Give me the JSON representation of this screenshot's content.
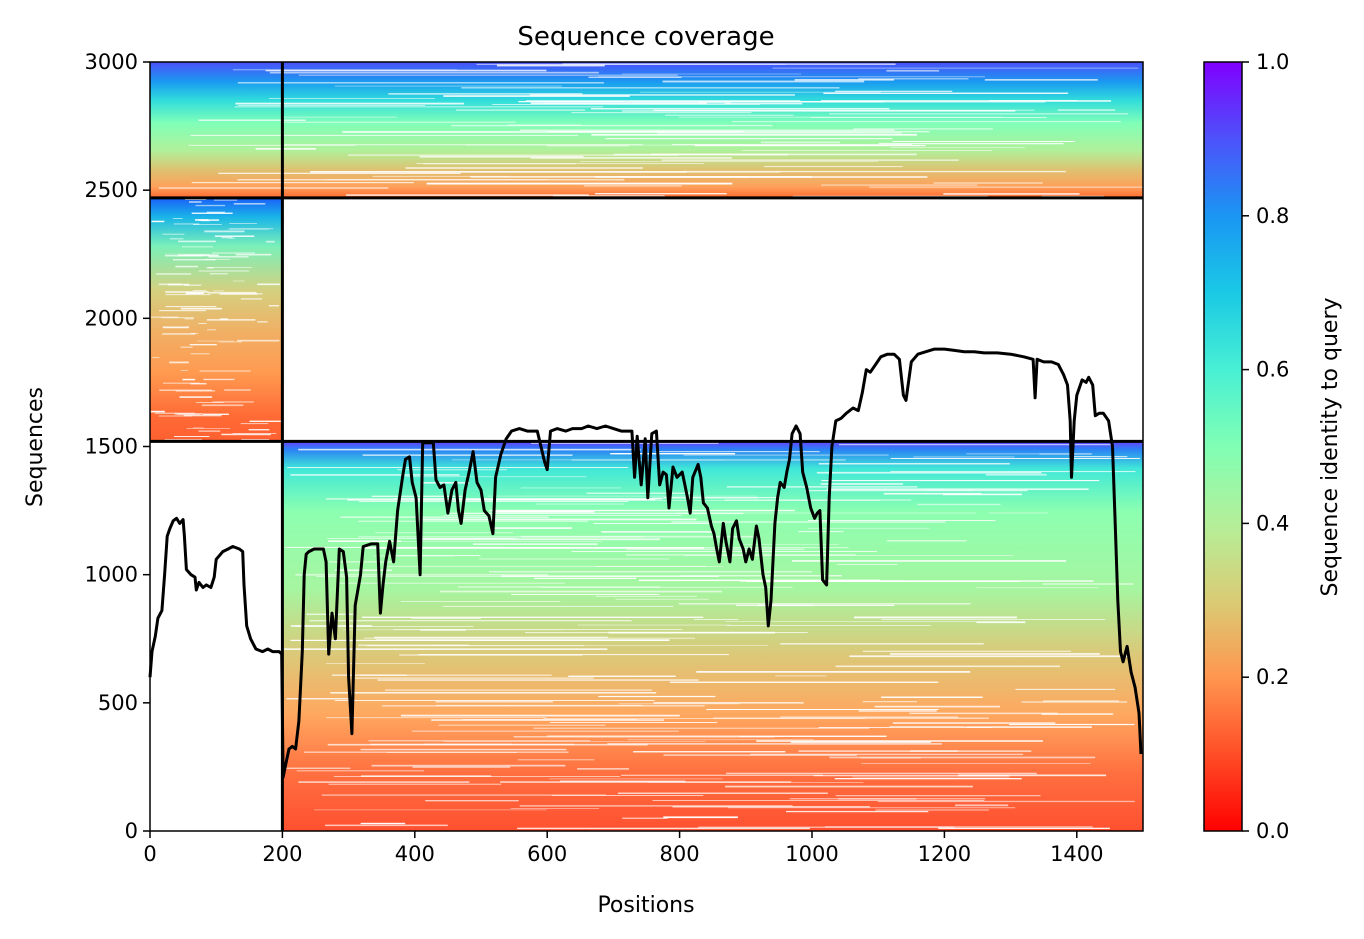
{
  "chart_data": {
    "type": "heatmap",
    "title": "Sequence coverage",
    "xlabel": "Positions",
    "ylabel": "Sequences",
    "xlim": [
      0,
      1500
    ],
    "ylim": [
      0,
      3000
    ],
    "x_ticks": [
      0,
      200,
      400,
      600,
      800,
      1000,
      1200,
      1400
    ],
    "y_ticks": [
      0,
      500,
      1000,
      1500,
      2000,
      2500,
      3000
    ],
    "colorbar": {
      "label": "Sequence identity to query",
      "colormap": "rainbow",
      "range": [
        0.0,
        1.0
      ],
      "ticks": [
        "0.0",
        "0.2",
        "0.4",
        "0.6",
        "0.8",
        "1.0"
      ]
    },
    "block_boundaries": {
      "vertical_x": 200,
      "horizontal_y": [
        1520,
        2470
      ]
    },
    "coverage_blocks": [
      {
        "name": "block-1",
        "x": [
          0,
          200
        ],
        "y": [
          1520,
          2470
        ]
      },
      {
        "name": "block-2",
        "x": [
          200,
          1500
        ],
        "y": [
          0,
          1520
        ]
      },
      {
        "name": "block-3",
        "x": [
          0,
          1500
        ],
        "y": [
          2470,
          3000
        ]
      }
    ],
    "coverage_series": {
      "color": "#000000",
      "points": [
        [
          0,
          600
        ],
        [
          3,
          700
        ],
        [
          8,
          760
        ],
        [
          12,
          830
        ],
        [
          18,
          860
        ],
        [
          22,
          1000
        ],
        [
          26,
          1150
        ],
        [
          30,
          1180
        ],
        [
          35,
          1210
        ],
        [
          40,
          1220
        ],
        [
          45,
          1200
        ],
        [
          50,
          1215
        ],
        [
          52,
          1150
        ],
        [
          55,
          1020
        ],
        [
          62,
          1000
        ],
        [
          68,
          990
        ],
        [
          70,
          940
        ],
        [
          74,
          970
        ],
        [
          80,
          950
        ],
        [
          85,
          960
        ],
        [
          92,
          950
        ],
        [
          97,
          990
        ],
        [
          100,
          1060
        ],
        [
          110,
          1090
        ],
        [
          118,
          1100
        ],
        [
          125,
          1110
        ],
        [
          135,
          1100
        ],
        [
          140,
          1090
        ],
        [
          142,
          960
        ],
        [
          146,
          800
        ],
        [
          152,
          750
        ],
        [
          160,
          710
        ],
        [
          170,
          700
        ],
        [
          178,
          710
        ],
        [
          185,
          700
        ],
        [
          195,
          700
        ],
        [
          199,
          690
        ],
        [
          201,
          210
        ],
        [
          205,
          260
        ],
        [
          210,
          320
        ],
        [
          215,
          330
        ],
        [
          220,
          320
        ],
        [
          225,
          430
        ],
        [
          230,
          700
        ],
        [
          233,
          1000
        ],
        [
          236,
          1080
        ],
        [
          240,
          1090
        ],
        [
          248,
          1100
        ],
        [
          255,
          1100
        ],
        [
          262,
          1100
        ],
        [
          266,
          1050
        ],
        [
          270,
          690
        ],
        [
          275,
          850
        ],
        [
          280,
          750
        ],
        [
          286,
          1100
        ],
        [
          292,
          1090
        ],
        [
          297,
          990
        ],
        [
          300,
          600
        ],
        [
          305,
          380
        ],
        [
          310,
          880
        ],
        [
          318,
          1000
        ],
        [
          322,
          1110
        ],
        [
          334,
          1120
        ],
        [
          344,
          1120
        ],
        [
          348,
          850
        ],
        [
          352,
          960
        ],
        [
          356,
          1050
        ],
        [
          362,
          1130
        ],
        [
          368,
          1050
        ],
        [
          374,
          1250
        ],
        [
          382,
          1390
        ],
        [
          386,
          1450
        ],
        [
          392,
          1460
        ],
        [
          396,
          1360
        ],
        [
          402,
          1300
        ],
        [
          408,
          1000
        ],
        [
          412,
          1515
        ],
        [
          428,
          1515
        ],
        [
          432,
          1370
        ],
        [
          438,
          1340
        ],
        [
          444,
          1350
        ],
        [
          450,
          1240
        ],
        [
          456,
          1330
        ],
        [
          462,
          1360
        ],
        [
          466,
          1250
        ],
        [
          470,
          1200
        ],
        [
          476,
          1330
        ],
        [
          482,
          1400
        ],
        [
          488,
          1480
        ],
        [
          494,
          1360
        ],
        [
          500,
          1330
        ],
        [
          505,
          1250
        ],
        [
          512,
          1230
        ],
        [
          518,
          1160
        ],
        [
          522,
          1380
        ],
        [
          530,
          1470
        ],
        [
          538,
          1530
        ],
        [
          546,
          1560
        ],
        [
          558,
          1570
        ],
        [
          570,
          1560
        ],
        [
          585,
          1560
        ],
        [
          596,
          1440
        ],
        [
          600,
          1410
        ],
        [
          605,
          1560
        ],
        [
          615,
          1570
        ],
        [
          628,
          1560
        ],
        [
          638,
          1570
        ],
        [
          652,
          1570
        ],
        [
          662,
          1580
        ],
        [
          675,
          1570
        ],
        [
          688,
          1580
        ],
        [
          700,
          1570
        ],
        [
          712,
          1560
        ],
        [
          728,
          1560
        ],
        [
          732,
          1380
        ],
        [
          736,
          1540
        ],
        [
          742,
          1350
        ],
        [
          748,
          1530
        ],
        [
          752,
          1300
        ],
        [
          758,
          1550
        ],
        [
          765,
          1560
        ],
        [
          770,
          1350
        ],
        [
          775,
          1400
        ],
        [
          780,
          1390
        ],
        [
          784,
          1260
        ],
        [
          790,
          1420
        ],
        [
          796,
          1380
        ],
        [
          804,
          1400
        ],
        [
          808,
          1350
        ],
        [
          812,
          1300
        ],
        [
          816,
          1240
        ],
        [
          820,
          1380
        ],
        [
          828,
          1430
        ],
        [
          832,
          1380
        ],
        [
          836,
          1280
        ],
        [
          842,
          1260
        ],
        [
          848,
          1190
        ],
        [
          852,
          1160
        ],
        [
          856,
          1100
        ],
        [
          860,
          1050
        ],
        [
          866,
          1200
        ],
        [
          870,
          1130
        ],
        [
          876,
          1050
        ],
        [
          880,
          1180
        ],
        [
          886,
          1210
        ],
        [
          890,
          1140
        ],
        [
          896,
          1100
        ],
        [
          900,
          1050
        ],
        [
          905,
          1100
        ],
        [
          910,
          1060
        ],
        [
          916,
          1190
        ],
        [
          920,
          1140
        ],
        [
          926,
          1000
        ],
        [
          930,
          950
        ],
        [
          934,
          800
        ],
        [
          938,
          900
        ],
        [
          944,
          1200
        ],
        [
          948,
          1300
        ],
        [
          952,
          1360
        ],
        [
          958,
          1340
        ],
        [
          962,
          1400
        ],
        [
          966,
          1450
        ],
        [
          970,
          1550
        ],
        [
          976,
          1580
        ],
        [
          982,
          1550
        ],
        [
          986,
          1400
        ],
        [
          992,
          1340
        ],
        [
          998,
          1260
        ],
        [
          1004,
          1220
        ],
        [
          1008,
          1240
        ],
        [
          1012,
          1250
        ],
        [
          1016,
          980
        ],
        [
          1022,
          960
        ],
        [
          1026,
          1300
        ],
        [
          1030,
          1500
        ],
        [
          1036,
          1600
        ],
        [
          1044,
          1610
        ],
        [
          1052,
          1630
        ],
        [
          1062,
          1650
        ],
        [
          1070,
          1640
        ],
        [
          1076,
          1710
        ],
        [
          1082,
          1800
        ],
        [
          1088,
          1790
        ],
        [
          1096,
          1820
        ],
        [
          1104,
          1850
        ],
        [
          1114,
          1860
        ],
        [
          1124,
          1860
        ],
        [
          1132,
          1840
        ],
        [
          1138,
          1700
        ],
        [
          1142,
          1680
        ],
        [
          1150,
          1830
        ],
        [
          1160,
          1860
        ],
        [
          1172,
          1870
        ],
        [
          1185,
          1880
        ],
        [
          1200,
          1880
        ],
        [
          1215,
          1875
        ],
        [
          1230,
          1870
        ],
        [
          1245,
          1870
        ],
        [
          1260,
          1865
        ],
        [
          1280,
          1865
        ],
        [
          1300,
          1860
        ],
        [
          1320,
          1850
        ],
        [
          1334,
          1840
        ],
        [
          1337,
          1690
        ],
        [
          1340,
          1840
        ],
        [
          1350,
          1830
        ],
        [
          1362,
          1830
        ],
        [
          1372,
          1820
        ],
        [
          1380,
          1780
        ],
        [
          1386,
          1740
        ],
        [
          1390,
          1600
        ],
        [
          1392,
          1380
        ],
        [
          1396,
          1600
        ],
        [
          1400,
          1700
        ],
        [
          1408,
          1760
        ],
        [
          1414,
          1750
        ],
        [
          1418,
          1770
        ],
        [
          1424,
          1740
        ],
        [
          1428,
          1620
        ],
        [
          1434,
          1630
        ],
        [
          1440,
          1630
        ],
        [
          1448,
          1600
        ],
        [
          1454,
          1500
        ],
        [
          1458,
          1200
        ],
        [
          1462,
          900
        ],
        [
          1466,
          700
        ],
        [
          1470,
          660
        ],
        [
          1476,
          720
        ],
        [
          1482,
          620
        ],
        [
          1488,
          560
        ],
        [
          1494,
          460
        ],
        [
          1497,
          300
        ]
      ]
    }
  }
}
